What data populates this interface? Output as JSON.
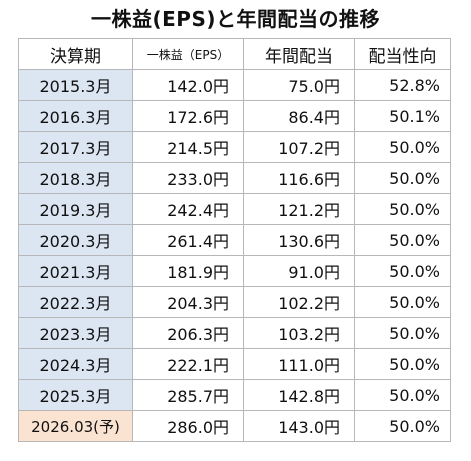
{
  "chart_data": {
    "type": "table",
    "title": "一株益(EPS)と年間配当の推移",
    "columns": [
      "決算期",
      "一株益（EPS）",
      "年間配当",
      "配当性向"
    ],
    "rows": [
      {
        "period": "2015.3月",
        "eps": "142.0円",
        "dividend": "75.0円",
        "payout": "52.8%"
      },
      {
        "period": "2016.3月",
        "eps": "172.6円",
        "dividend": "86.4円",
        "payout": "50.1%"
      },
      {
        "period": "2017.3月",
        "eps": "214.5円",
        "dividend": "107.2円",
        "payout": "50.0%"
      },
      {
        "period": "2018.3月",
        "eps": "233.0円",
        "dividend": "116.6円",
        "payout": "50.0%"
      },
      {
        "period": "2019.3月",
        "eps": "242.4円",
        "dividend": "121.2円",
        "payout": "50.0%"
      },
      {
        "period": "2020.3月",
        "eps": "261.4円",
        "dividend": "130.6円",
        "payout": "50.0%"
      },
      {
        "period": "2021.3月",
        "eps": "181.9円",
        "dividend": "91.0円",
        "payout": "50.0%"
      },
      {
        "period": "2022.3月",
        "eps": "204.3円",
        "dividend": "102.2円",
        "payout": "50.0%"
      },
      {
        "period": "2023.3月",
        "eps": "206.3円",
        "dividend": "103.2円",
        "payout": "50.0%"
      },
      {
        "period": "2024.3月",
        "eps": "222.1円",
        "dividend": "111.0円",
        "payout": "50.0%"
      },
      {
        "period": "2025.3月",
        "eps": "285.7円",
        "dividend": "142.8円",
        "payout": "50.0%"
      },
      {
        "period": "2026.03(予)",
        "eps": "286.0円",
        "dividend": "143.0円",
        "payout": "50.0%",
        "forecast": true
      }
    ],
    "colors": {
      "period_cell": "#dce6f2",
      "forecast_cell": "#fbe3d1",
      "border": "#b7b7b7"
    }
  }
}
